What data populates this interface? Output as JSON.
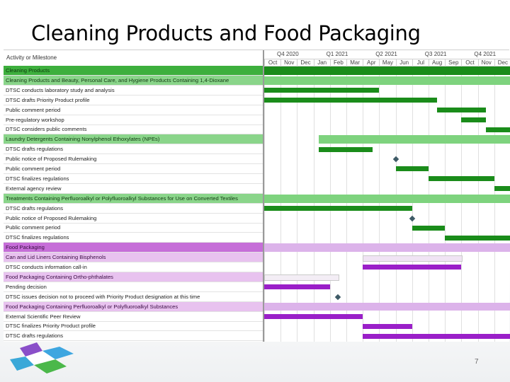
{
  "slide": {
    "title": "Cleaning Products and Food Packaging",
    "page_number": "7"
  },
  "gantt": {
    "column_header": "Activity or Milestone",
    "quarters": [
      "Q4 2020",
      "Q1 2021",
      "Q2 2021",
      "Q3 2021",
      "Q4 2021"
    ],
    "months": [
      "Oct",
      "Nov",
      "Dec",
      "Jan",
      "Feb",
      "Mar",
      "Apr",
      "May",
      "Jun",
      "Jul",
      "Aug",
      "Sep",
      "Oct",
      "Nov",
      "Dec"
    ],
    "colors": {
      "green": "#1a8c1a",
      "green_light": "#7ed37e",
      "purple": "#9a1fc8",
      "purple_light": "#dcb3ea"
    },
    "rows": [
      {
        "label": "Cleaning Products",
        "style": "green-main"
      },
      {
        "label": "Cleaning Products and Beauty, Personal Care, and Hygiene Products Containing 1,4-Dioxane",
        "style": "green-sub"
      },
      {
        "label": "DTSC conducts laboratory study and analysis",
        "style": "task"
      },
      {
        "label": "DTSC drafts Priority Product profile",
        "style": "task"
      },
      {
        "label": "Public comment period",
        "style": "task"
      },
      {
        "label": "Pre-regulatory workshop",
        "style": "task"
      },
      {
        "label": "DTSC considers public comments",
        "style": "task"
      },
      {
        "label": "Laundry Detergents Containing Nonylphenol Ethoxylates (NPEs)",
        "style": "green-sub"
      },
      {
        "label": "DTSC drafts regulations",
        "style": "task"
      },
      {
        "label": "Public notice of Proposed Rulemaking",
        "style": "task"
      },
      {
        "label": "Public comment period",
        "style": "task"
      },
      {
        "label": "DTSC finalizes regulations",
        "style": "task"
      },
      {
        "label": "External agency review",
        "style": "task"
      },
      {
        "label": "Treatments Containing Perfluoroalkyl or Polyfluoroalkyl Substances for Use on Converted Textiles",
        "style": "green-sub"
      },
      {
        "label": "DTSC drafts regulations",
        "style": "task"
      },
      {
        "label": "Public notice of Proposed Rulemaking",
        "style": "task"
      },
      {
        "label": "Public comment period",
        "style": "task"
      },
      {
        "label": "DTSC finalizes regulations",
        "style": "task"
      },
      {
        "label": "Food Packaging",
        "style": "purple-main"
      },
      {
        "label": "Can and Lid Liners Containing Bisphenols",
        "style": "purple-sub"
      },
      {
        "label": "DTSC conducts information call-in",
        "style": "task"
      },
      {
        "label": "Food Packaging Containing Ortho-phthalates",
        "style": "purple-sub"
      },
      {
        "label": "Pending decision",
        "style": "task"
      },
      {
        "label": "DTSC issues decision not to proceed with Priority Product designation at this time",
        "style": "task"
      },
      {
        "label": "Food Packaging Containing Perfluoroalkyl or Polyfluoroalkyl Substances",
        "style": "purple-sub"
      },
      {
        "label": "External Scientific Peer Review",
        "style": "task"
      },
      {
        "label": "DTSC finalizes Priority Product profile",
        "style": "task"
      },
      {
        "label": "DTSC drafts regulations",
        "style": "task"
      }
    ],
    "bars": [
      {
        "row": 0,
        "start": 0.0,
        "end": 15.0,
        "color": "green",
        "full": true
      },
      {
        "row": 1,
        "start": 0.0,
        "end": 15.0,
        "color": "green_light",
        "full": true
      },
      {
        "row": 2,
        "start": 0.0,
        "end": 7.0,
        "color": "green"
      },
      {
        "row": 3,
        "start": 0.0,
        "end": 10.5,
        "color": "green"
      },
      {
        "row": 4,
        "start": 10.5,
        "end": 13.5,
        "color": "green"
      },
      {
        "row": 5,
        "start": 12.0,
        "end": 13.5,
        "color": "green"
      },
      {
        "row": 6,
        "start": 13.5,
        "end": 15.0,
        "color": "green"
      },
      {
        "row": 7,
        "start": 3.3,
        "end": 15.0,
        "color": "green_light",
        "full": true
      },
      {
        "row": 8,
        "start": 3.3,
        "end": 6.6,
        "color": "green"
      },
      {
        "row": 10,
        "start": 8.0,
        "end": 10.0,
        "color": "green"
      },
      {
        "row": 11,
        "start": 10.0,
        "end": 14.0,
        "color": "green"
      },
      {
        "row": 12,
        "start": 14.0,
        "end": 15.0,
        "color": "green"
      },
      {
        "row": 13,
        "start": 0.0,
        "end": 15.0,
        "color": "green_light",
        "full": true
      },
      {
        "row": 14,
        "start": 0.0,
        "end": 9.0,
        "color": "green"
      },
      {
        "row": 16,
        "start": 9.0,
        "end": 11.0,
        "color": "green"
      },
      {
        "row": 17,
        "start": 11.0,
        "end": 15.0,
        "color": "green"
      },
      {
        "row": 18,
        "start": 0.0,
        "end": 15.0,
        "color": "purple_light",
        "full": true
      },
      {
        "row": 19,
        "start": 6.0,
        "end": 12.0,
        "color": "purple_light",
        "full": true
      },
      {
        "row": 20,
        "start": 6.0,
        "end": 12.0,
        "color": "purple"
      },
      {
        "row": 21,
        "start": 0.0,
        "end": 4.5,
        "color": "purple_light",
        "full": true
      },
      {
        "row": 22,
        "start": 0.0,
        "end": 4.0,
        "color": "purple"
      },
      {
        "row": 24,
        "start": 0.0,
        "end": 15.0,
        "color": "purple_light",
        "full": true
      },
      {
        "row": 25,
        "start": 0.0,
        "end": 6.0,
        "color": "purple"
      },
      {
        "row": 26,
        "start": 6.0,
        "end": 9.0,
        "color": "purple"
      },
      {
        "row": 27,
        "start": 6.0,
        "end": 15.0,
        "color": "purple"
      }
    ],
    "milestones": [
      {
        "row": 9,
        "at": 8.0
      },
      {
        "row": 15,
        "at": 9.0
      },
      {
        "row": 23,
        "at": 4.5
      }
    ]
  }
}
